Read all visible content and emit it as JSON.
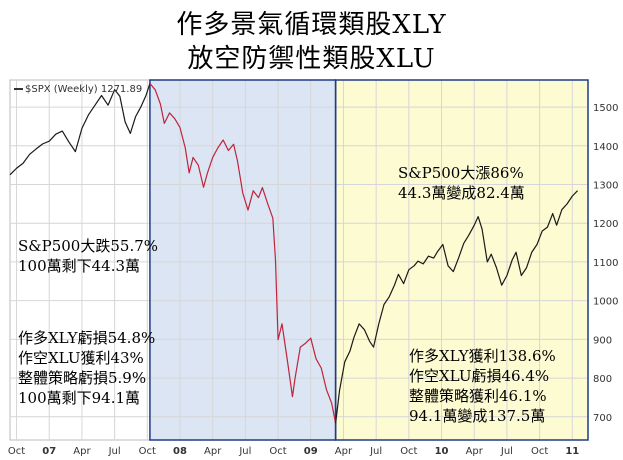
{
  "titles": {
    "line1": "作多景氣循環類股XLY",
    "line2": "放空防禦性類股XLU"
  },
  "legend": {
    "label": "$SPX (Weekly) 1271.89"
  },
  "colors": {
    "bear_band": "#dbe5f3",
    "bull_band": "#fdfbd2",
    "bear_line": "#c0243c",
    "bull_line": "#1a1a1a",
    "band_border": "#1f3b8a"
  },
  "annotations": {
    "bear_drop": [
      "S&P500大跌55.7%",
      "100萬剩下44.3萬"
    ],
    "bear_strategy": [
      "作多XLY虧損54.8%",
      "作空XLU獲利43%",
      "整體策略虧損5.9%",
      "100萬剩下94.1萬"
    ],
    "bull_rise": [
      "S&P500大漲86%",
      "44.3萬變成82.4萬"
    ],
    "bull_strategy": [
      "作多XLY獲利138.6%",
      "作空XLU虧損46.4%",
      "整體策略獲利46.1%",
      "94.1萬變成137.5萬"
    ]
  },
  "chart_data": {
    "type": "line",
    "series_name": "$SPX (Weekly)",
    "yticks": [
      700,
      800,
      900,
      1000,
      1100,
      1200,
      1300,
      1400,
      1500
    ],
    "ylim": [
      640,
      1570
    ],
    "xlim": [
      2006.7,
      2011.12
    ],
    "xticks": [
      {
        "label": "Oct",
        "x": 2006.75
      },
      {
        "label": "07",
        "x": 2007.0
      },
      {
        "label": "Apr",
        "x": 2007.25
      },
      {
        "label": "Jul",
        "x": 2007.5
      },
      {
        "label": "Oct",
        "x": 2007.75
      },
      {
        "label": "08",
        "x": 2008.0
      },
      {
        "label": "Apr",
        "x": 2008.25
      },
      {
        "label": "Jul",
        "x": 2008.5
      },
      {
        "label": "Oct",
        "x": 2008.75
      },
      {
        "label": "09",
        "x": 2009.0
      },
      {
        "label": "Apr",
        "x": 2009.25
      },
      {
        "label": "Jul",
        "x": 2009.5
      },
      {
        "label": "Oct",
        "x": 2009.75
      },
      {
        "label": "10",
        "x": 2010.0
      },
      {
        "label": "Apr",
        "x": 2010.25
      },
      {
        "label": "Jul",
        "x": 2010.5
      },
      {
        "label": "Oct",
        "x": 2010.75
      },
      {
        "label": "11",
        "x": 2011.0
      }
    ],
    "bear_period": [
      2007.77,
      2009.19
    ],
    "bull_period": [
      2009.19,
      2011.12
    ],
    "points": [
      [
        2006.7,
        1325
      ],
      [
        2006.75,
        1342
      ],
      [
        2006.8,
        1355
      ],
      [
        2006.85,
        1378
      ],
      [
        2006.9,
        1392
      ],
      [
        2006.95,
        1405
      ],
      [
        2007.0,
        1412
      ],
      [
        2007.05,
        1430
      ],
      [
        2007.1,
        1438
      ],
      [
        2007.15,
        1410
      ],
      [
        2007.2,
        1385
      ],
      [
        2007.25,
        1445
      ],
      [
        2007.3,
        1480
      ],
      [
        2007.35,
        1505
      ],
      [
        2007.4,
        1530
      ],
      [
        2007.45,
        1505
      ],
      [
        2007.5,
        1545
      ],
      [
        2007.54,
        1528
      ],
      [
        2007.58,
        1462
      ],
      [
        2007.62,
        1432
      ],
      [
        2007.66,
        1475
      ],
      [
        2007.7,
        1500
      ],
      [
        2007.74,
        1530
      ],
      [
        2007.77,
        1561
      ],
      [
        2007.81,
        1545
      ],
      [
        2007.85,
        1508
      ],
      [
        2007.88,
        1458
      ],
      [
        2007.92,
        1485
      ],
      [
        2007.96,
        1470
      ],
      [
        2008.0,
        1447
      ],
      [
        2008.04,
        1395
      ],
      [
        2008.07,
        1330
      ],
      [
        2008.1,
        1370
      ],
      [
        2008.14,
        1350
      ],
      [
        2008.18,
        1293
      ],
      [
        2008.21,
        1330
      ],
      [
        2008.25,
        1370
      ],
      [
        2008.29,
        1395
      ],
      [
        2008.33,
        1415
      ],
      [
        2008.37,
        1388
      ],
      [
        2008.41,
        1404
      ],
      [
        2008.44,
        1360
      ],
      [
        2008.48,
        1278
      ],
      [
        2008.52,
        1234
      ],
      [
        2008.56,
        1284
      ],
      [
        2008.6,
        1266
      ],
      [
        2008.63,
        1292
      ],
      [
        2008.67,
        1251
      ],
      [
        2008.71,
        1213
      ],
      [
        2008.73,
        1106
      ],
      [
        2008.75,
        899
      ],
      [
        2008.78,
        940
      ],
      [
        2008.82,
        848
      ],
      [
        2008.86,
        752
      ],
      [
        2008.88,
        800
      ],
      [
        2008.92,
        880
      ],
      [
        2008.96,
        890
      ],
      [
        2009.0,
        903
      ],
      [
        2009.04,
        850
      ],
      [
        2009.08,
        826
      ],
      [
        2009.12,
        770
      ],
      [
        2009.16,
        735
      ],
      [
        2009.19,
        683
      ],
      [
        2009.22,
        768
      ],
      [
        2009.26,
        842
      ],
      [
        2009.3,
        870
      ],
      [
        2009.33,
        905
      ],
      [
        2009.37,
        940
      ],
      [
        2009.41,
        925
      ],
      [
        2009.45,
        895
      ],
      [
        2009.48,
        880
      ],
      [
        2009.52,
        940
      ],
      [
        2009.56,
        990
      ],
      [
        2009.6,
        1010
      ],
      [
        2009.64,
        1040
      ],
      [
        2009.67,
        1068
      ],
      [
        2009.71,
        1044
      ],
      [
        2009.75,
        1080
      ],
      [
        2009.79,
        1090
      ],
      [
        2009.82,
        1102
      ],
      [
        2009.86,
        1095
      ],
      [
        2009.9,
        1115
      ],
      [
        2009.94,
        1110
      ],
      [
        2009.97,
        1127
      ],
      [
        2010.01,
        1145
      ],
      [
        2010.05,
        1090
      ],
      [
        2010.09,
        1075
      ],
      [
        2010.13,
        1110
      ],
      [
        2010.17,
        1148
      ],
      [
        2010.21,
        1170
      ],
      [
        2010.25,
        1195
      ],
      [
        2010.28,
        1217
      ],
      [
        2010.31,
        1185
      ],
      [
        2010.35,
        1100
      ],
      [
        2010.38,
        1120
      ],
      [
        2010.42,
        1085
      ],
      [
        2010.46,
        1040
      ],
      [
        2010.5,
        1065
      ],
      [
        2010.54,
        1105
      ],
      [
        2010.57,
        1125
      ],
      [
        2010.61,
        1065
      ],
      [
        2010.65,
        1085
      ],
      [
        2010.69,
        1125
      ],
      [
        2010.73,
        1145
      ],
      [
        2010.77,
        1180
      ],
      [
        2010.81,
        1190
      ],
      [
        2010.85,
        1225
      ],
      [
        2010.88,
        1195
      ],
      [
        2010.92,
        1235
      ],
      [
        2010.96,
        1250
      ],
      [
        2011.0,
        1270
      ],
      [
        2011.04,
        1284
      ]
    ]
  }
}
